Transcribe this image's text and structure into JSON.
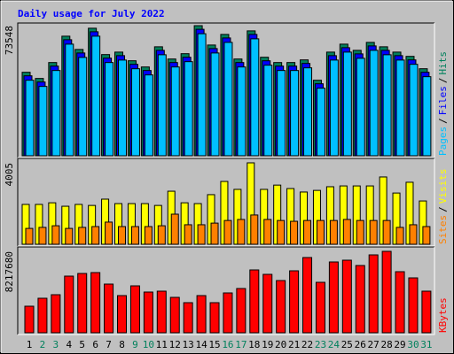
{
  "chart_data": [
    {
      "type": "bar",
      "title": "Daily usage for July 2022",
      "legend_separator": "/",
      "ylim": [
        0,
        73548
      ],
      "yticks": [
        73548
      ],
      "grid": false,
      "series": [
        {
          "name": "Hits",
          "color": "#00805c",
          "values": [
            47200,
            43700,
            52700,
            67600,
            60100,
            72100,
            57200,
            58600,
            53700,
            50200,
            61600,
            54700,
            57700,
            73548,
            62600,
            68600,
            54700,
            70600,
            55700,
            52700,
            52700,
            54200,
            42700,
            58600,
            63100,
            59600,
            64100,
            61600,
            58600,
            56200,
            49200
          ]
        },
        {
          "name": "Files",
          "color": "#0000ff",
          "values": [
            45200,
            41700,
            50700,
            65600,
            58100,
            70100,
            55200,
            56600,
            51700,
            48200,
            59600,
            52700,
            55700,
            71500,
            60600,
            66600,
            52700,
            68600,
            53700,
            50700,
            50700,
            52200,
            40700,
            56600,
            61100,
            57600,
            62100,
            59600,
            56600,
            54200,
            47200
          ]
        },
        {
          "name": "Pages",
          "color": "#00c0ff",
          "values": [
            42700,
            39200,
            48200,
            63100,
            55600,
            67600,
            52700,
            54100,
            49200,
            45700,
            57100,
            50200,
            53200,
            69000,
            58100,
            64100,
            50200,
            66100,
            51200,
            48200,
            48200,
            49700,
            38200,
            54100,
            58600,
            55100,
            59600,
            57100,
            54100,
            51700,
            44700
          ]
        }
      ]
    },
    {
      "type": "bar",
      "legend_separator": "/",
      "ylim": [
        0,
        4005
      ],
      "yticks": [
        4005
      ],
      "grid": false,
      "series": [
        {
          "name": "Visits",
          "color": "#ffff00",
          "values": [
            1960,
            1960,
            2040,
            1870,
            1960,
            1910,
            2220,
            2000,
            2000,
            2000,
            1910,
            2610,
            2040,
            2000,
            2440,
            3090,
            2700,
            4005,
            2700,
            2910,
            2740,
            2570,
            2650,
            2830,
            2870,
            2870,
            2870,
            3310,
            2520,
            3050,
            2130
          ]
        },
        {
          "name": "Sites",
          "color": "#ff8000",
          "values": [
            780,
            830,
            910,
            780,
            830,
            870,
            1090,
            870,
            870,
            870,
            910,
            1480,
            960,
            960,
            1040,
            1170,
            1220,
            1440,
            1220,
            1170,
            1130,
            1170,
            1170,
            1170,
            1220,
            1170,
            1170,
            1170,
            830,
            960,
            870
          ]
        }
      ]
    },
    {
      "type": "bar",
      "ylim": [
        0,
        8217680
      ],
      "yticks": [
        8217680
      ],
      "grid": false,
      "categories": [
        "1",
        "2",
        "3",
        "4",
        "5",
        "6",
        "7",
        "8",
        "9",
        "10",
        "11",
        "12",
        "13",
        "14",
        "15",
        "16",
        "17",
        "18",
        "19",
        "20",
        "21",
        "22",
        "23",
        "24",
        "25",
        "26",
        "27",
        "28",
        "29",
        "30",
        "31"
      ],
      "category_colors": [
        "#000000",
        "#00805c",
        "#00805c",
        "#000000",
        "#000000",
        "#000000",
        "#000000",
        "#000000",
        "#00805c",
        "#00805c",
        "#000000",
        "#000000",
        "#000000",
        "#000000",
        "#000000",
        "#00805c",
        "#00805c",
        "#000000",
        "#000000",
        "#000000",
        "#000000",
        "#000000",
        "#00805c",
        "#00805c",
        "#000000",
        "#000000",
        "#000000",
        "#000000",
        "#000000",
        "#00805c",
        "#00805c"
      ],
      "series": [
        {
          "name": "KBytes",
          "color": "#ff0000",
          "values": [
            2679700,
            3483600,
            3840800,
            5716600,
            5984600,
            6073900,
            4912700,
            3751500,
            4734100,
            4108800,
            4198100,
            3572900,
            3036900,
            3751500,
            3036900,
            4019500,
            4466100,
            6341900,
            5895300,
            5270000,
            6252500,
            7592400,
            5091400,
            7145800,
            7324400,
            6788500,
            7860300,
            8217680,
            6163200,
            5538000,
            4198100
          ]
        }
      ]
    }
  ]
}
